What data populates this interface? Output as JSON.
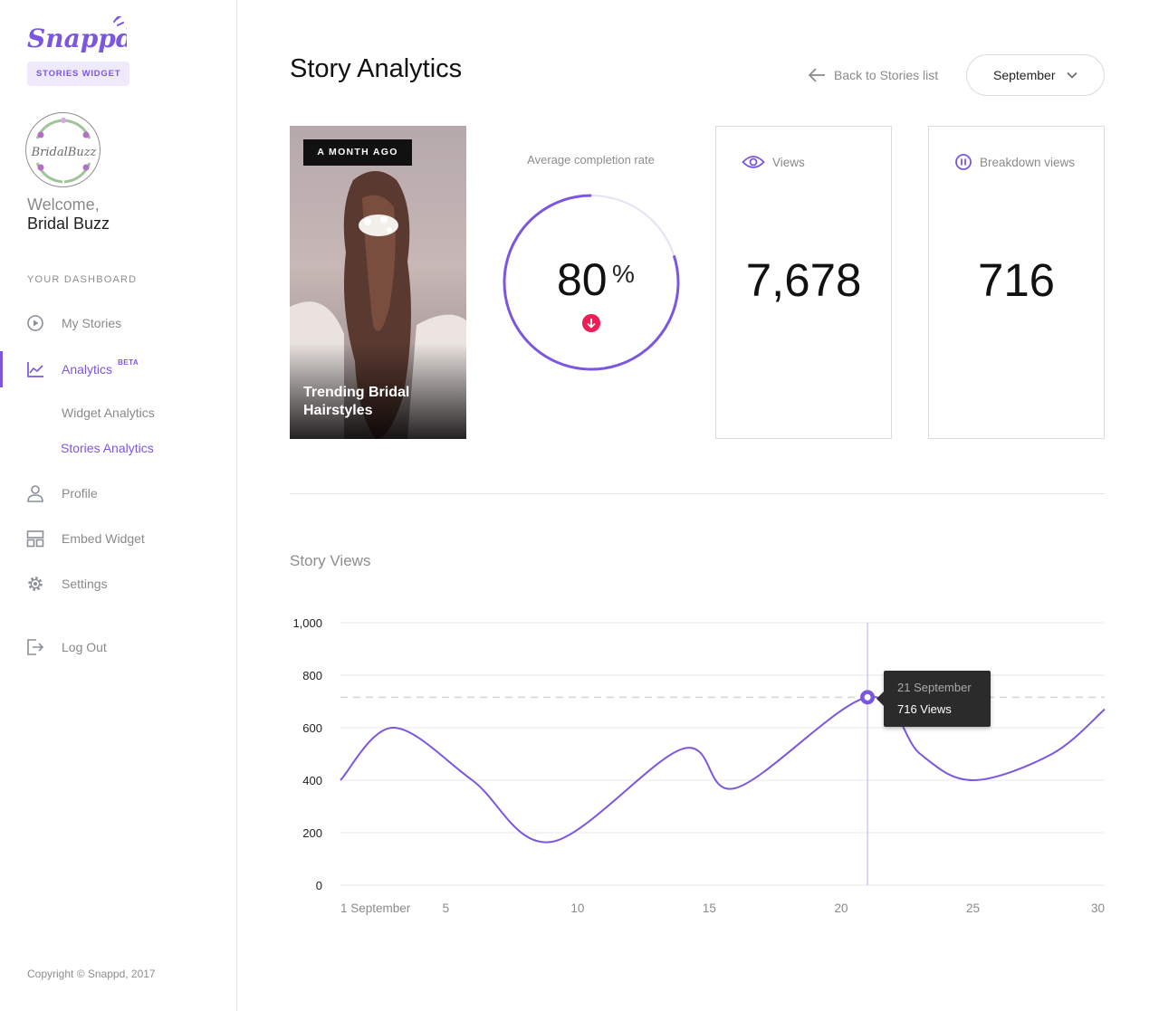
{
  "brand": {
    "logo_text": "Snappd",
    "badge": "STORIES WIDGET",
    "accent": "#7b57e0"
  },
  "user": {
    "avatar_text": "BridalBuzz",
    "welcome": "Welcome,",
    "name": "Bridal Buzz"
  },
  "sidebar": {
    "section_label": "YOUR DASHBOARD",
    "items": [
      {
        "label": "My Stories",
        "icon": "play-circle-icon"
      },
      {
        "label": "Analytics",
        "badge": "BETA",
        "icon": "line-chart-icon",
        "active": true
      },
      {
        "label": "Profile",
        "icon": "user-icon"
      },
      {
        "label": "Embed Widget",
        "icon": "layout-icon"
      },
      {
        "label": "Settings",
        "icon": "gear-icon"
      },
      {
        "label": "Log Out",
        "icon": "logout-icon"
      }
    ],
    "sub_items": [
      {
        "label": "Widget Analytics"
      },
      {
        "label": "Stories Analytics",
        "active": true
      }
    ],
    "copyright": "Copyright © Snappd, 2017"
  },
  "header": {
    "title": "Story Analytics",
    "back_label": "Back to Stories list",
    "month": "September"
  },
  "story": {
    "tag": "A MONTH AGO",
    "title": "Trending Bridal Hairstyles"
  },
  "completion": {
    "label": "Average completion rate",
    "value": "80",
    "unit": "%",
    "fraction": 0.8,
    "trend": "down",
    "trend_color": "#ef1d55"
  },
  "stats": {
    "views": {
      "label": "Views",
      "value": "7,678"
    },
    "breakdown": {
      "label": "Breakdown views",
      "value": "716"
    }
  },
  "chart_section": {
    "title": "Story Views",
    "tooltip_date": "21 September",
    "tooltip_value": "716 Views"
  },
  "chart_data": {
    "type": "line",
    "x": [
      1,
      3,
      6,
      9,
      14,
      16,
      21,
      23,
      25,
      28,
      30
    ],
    "y": [
      400,
      600,
      400,
      165,
      520,
      370,
      716,
      500,
      400,
      500,
      670
    ],
    "ylim": [
      0,
      1000
    ],
    "yticks": [
      0,
      200,
      400,
      600,
      800,
      1000
    ],
    "ytick_labels": [
      "0",
      "200",
      "400",
      "600",
      "800",
      "1,000"
    ],
    "xticks": [
      1,
      5,
      10,
      15,
      20,
      25,
      30
    ],
    "xtick_labels": [
      "1 September",
      "5",
      "10",
      "15",
      "20",
      "25",
      "30"
    ],
    "xlim": [
      1,
      30
    ],
    "highlight": {
      "x": 21,
      "y": 716
    },
    "reference_y": 716,
    "grid": true,
    "line_color": "#7b57e0"
  }
}
